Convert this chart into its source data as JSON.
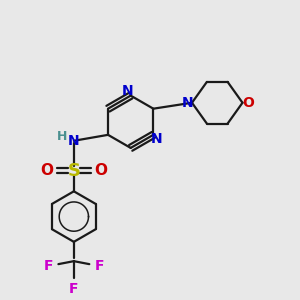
{
  "background_color": "#e8e8e8",
  "figsize": [
    3.0,
    3.0
  ],
  "dpi": 100,
  "bond_color": "#1a1a1a",
  "bond_lw": 1.6,
  "atom_colors": {
    "N": "#0000cc",
    "O": "#cc0000",
    "S": "#b8b800",
    "F": "#cc00cc",
    "H": "#4a9090",
    "C": "#1a1a1a"
  }
}
